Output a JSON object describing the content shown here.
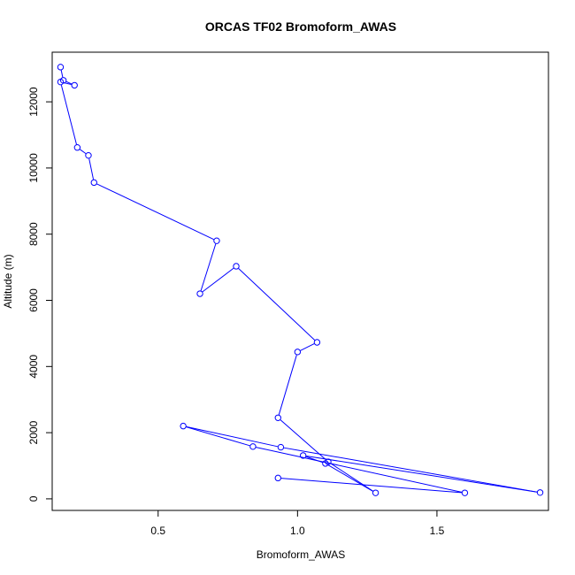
{
  "chart_data": {
    "type": "line",
    "title": "ORCAS TF02 Bromoform_AWAS",
    "xlabel": "Bromoform_AWAS",
    "ylabel": "Altitude (m)",
    "xlim": [
      0.12,
      1.9
    ],
    "ylim": [
      -350,
      13500
    ],
    "xticks": [
      0.5,
      1.0,
      1.5
    ],
    "xtick_labels": [
      "0.5",
      "1.0",
      "1.5"
    ],
    "yticks": [
      0,
      2000,
      4000,
      6000,
      8000,
      10000,
      12000
    ],
    "ytick_labels": [
      "0",
      "2000",
      "4000",
      "6000",
      "8000",
      "10000",
      "12000"
    ],
    "grid": false,
    "series": [
      {
        "color": "#0000ff",
        "marker": "open-circle",
        "x": [
          0.15,
          0.16,
          0.2,
          0.15,
          0.21,
          0.25,
          0.27,
          0.71,
          0.65,
          0.78,
          1.07,
          1.0,
          0.93,
          1.11,
          1.28,
          1.1,
          1.02,
          1.87,
          0.94,
          0.59,
          0.84,
          1.6,
          0.93
        ],
        "y": [
          13050,
          12650,
          12500,
          12600,
          10620,
          10380,
          9560,
          7800,
          6200,
          7030,
          4730,
          4440,
          2450,
          1120,
          180,
          1070,
          1310,
          190,
          1560,
          2200,
          1580,
          180,
          630
        ]
      }
    ]
  }
}
